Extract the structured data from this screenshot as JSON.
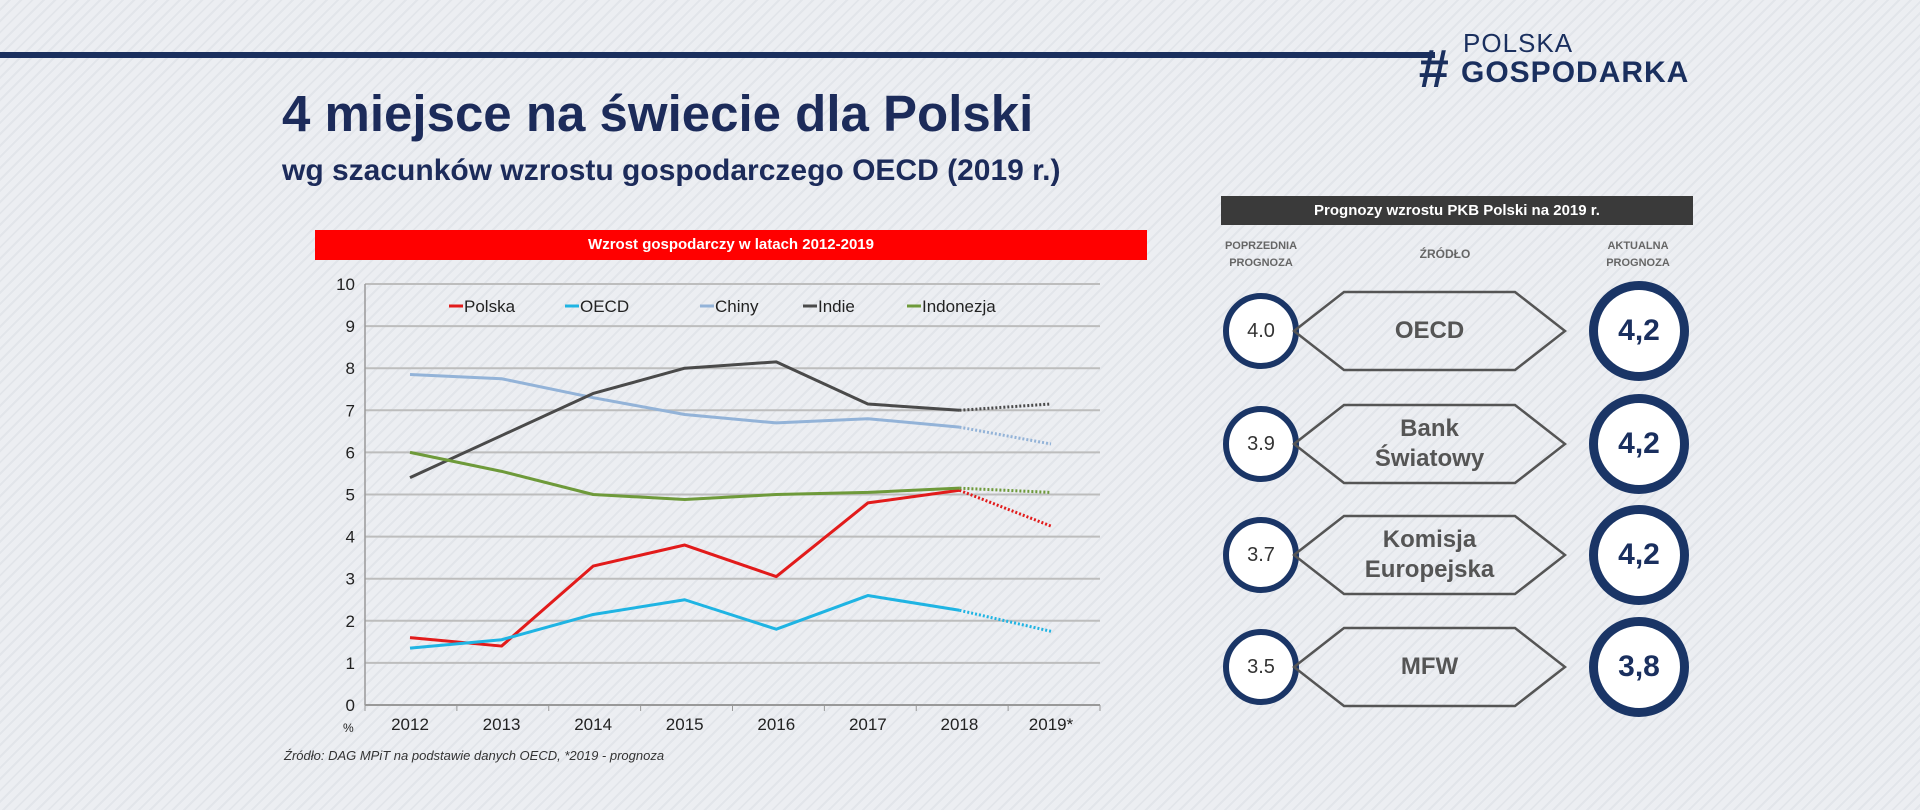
{
  "header": {
    "logo_top": "POLSKA",
    "logo_bottom": "GOSPODARKA",
    "logo_symbol": "#",
    "title": "4 miejsce na świecie dla Polski",
    "subtitle": "wg szacunków wzrostu gospodarczego OECD (2019 r.)",
    "accent_color": "#1a2f5e"
  },
  "chart_data": {
    "type": "line",
    "title": "Wzrost gospodarczy w latach 2012-2019",
    "ylabel": "%",
    "xlabel": "",
    "categories": [
      "2012",
      "2013",
      "2014",
      "2015",
      "2016",
      "2017",
      "2018",
      "2019*"
    ],
    "ylim": [
      0,
      10
    ],
    "yticks": [
      0,
      1,
      2,
      3,
      4,
      5,
      6,
      7,
      8,
      9,
      10
    ],
    "grid": true,
    "legend": "top",
    "forecast_from": "2018",
    "series": [
      {
        "name": "Polska",
        "color": "#e21b1b",
        "values": [
          1.6,
          1.4,
          3.3,
          3.8,
          3.05,
          4.8,
          5.1,
          4.25
        ]
      },
      {
        "name": "OECD",
        "color": "#1fb4e3",
        "values": [
          1.35,
          1.55,
          2.15,
          2.5,
          1.8,
          2.6,
          2.25,
          1.75
        ]
      },
      {
        "name": "Chiny",
        "color": "#93b3d8",
        "values": [
          7.85,
          7.75,
          7.3,
          6.9,
          6.7,
          6.8,
          6.6,
          6.2
        ]
      },
      {
        "name": "Indie",
        "color": "#4a4a4a",
        "values": [
          5.4,
          6.4,
          7.4,
          8.0,
          8.15,
          7.15,
          7.0,
          7.15
        ]
      },
      {
        "name": "Indonezja",
        "color": "#6e9a3a",
        "values": [
          6.0,
          5.55,
          5.0,
          4.88,
          5.0,
          5.05,
          5.15,
          5.05
        ]
      }
    ],
    "source": "Źródło: DAG MPiT na podstawie danych OECD, *2019 - prognoza"
  },
  "panel": {
    "title": "Prognozy wzrostu PKB Polski na 2019 r.",
    "col_previous": [
      "POPRZEDNIA",
      "PROGNOZA"
    ],
    "col_source": "ŹRÓDŁO",
    "col_current": [
      "AKTUALNA",
      "PROGNOZA"
    ],
    "rows": [
      {
        "previous": "4.0",
        "source": [
          "OECD"
        ],
        "current": "4,2"
      },
      {
        "previous": "3.9",
        "source": [
          "Bank",
          "Światowy"
        ],
        "current": "4,2"
      },
      {
        "previous": "3.7",
        "source": [
          "Komisja",
          "Europejska"
        ],
        "current": "4,2"
      },
      {
        "previous": "3.5",
        "source": [
          "MFW"
        ],
        "current": "3,8"
      }
    ]
  }
}
